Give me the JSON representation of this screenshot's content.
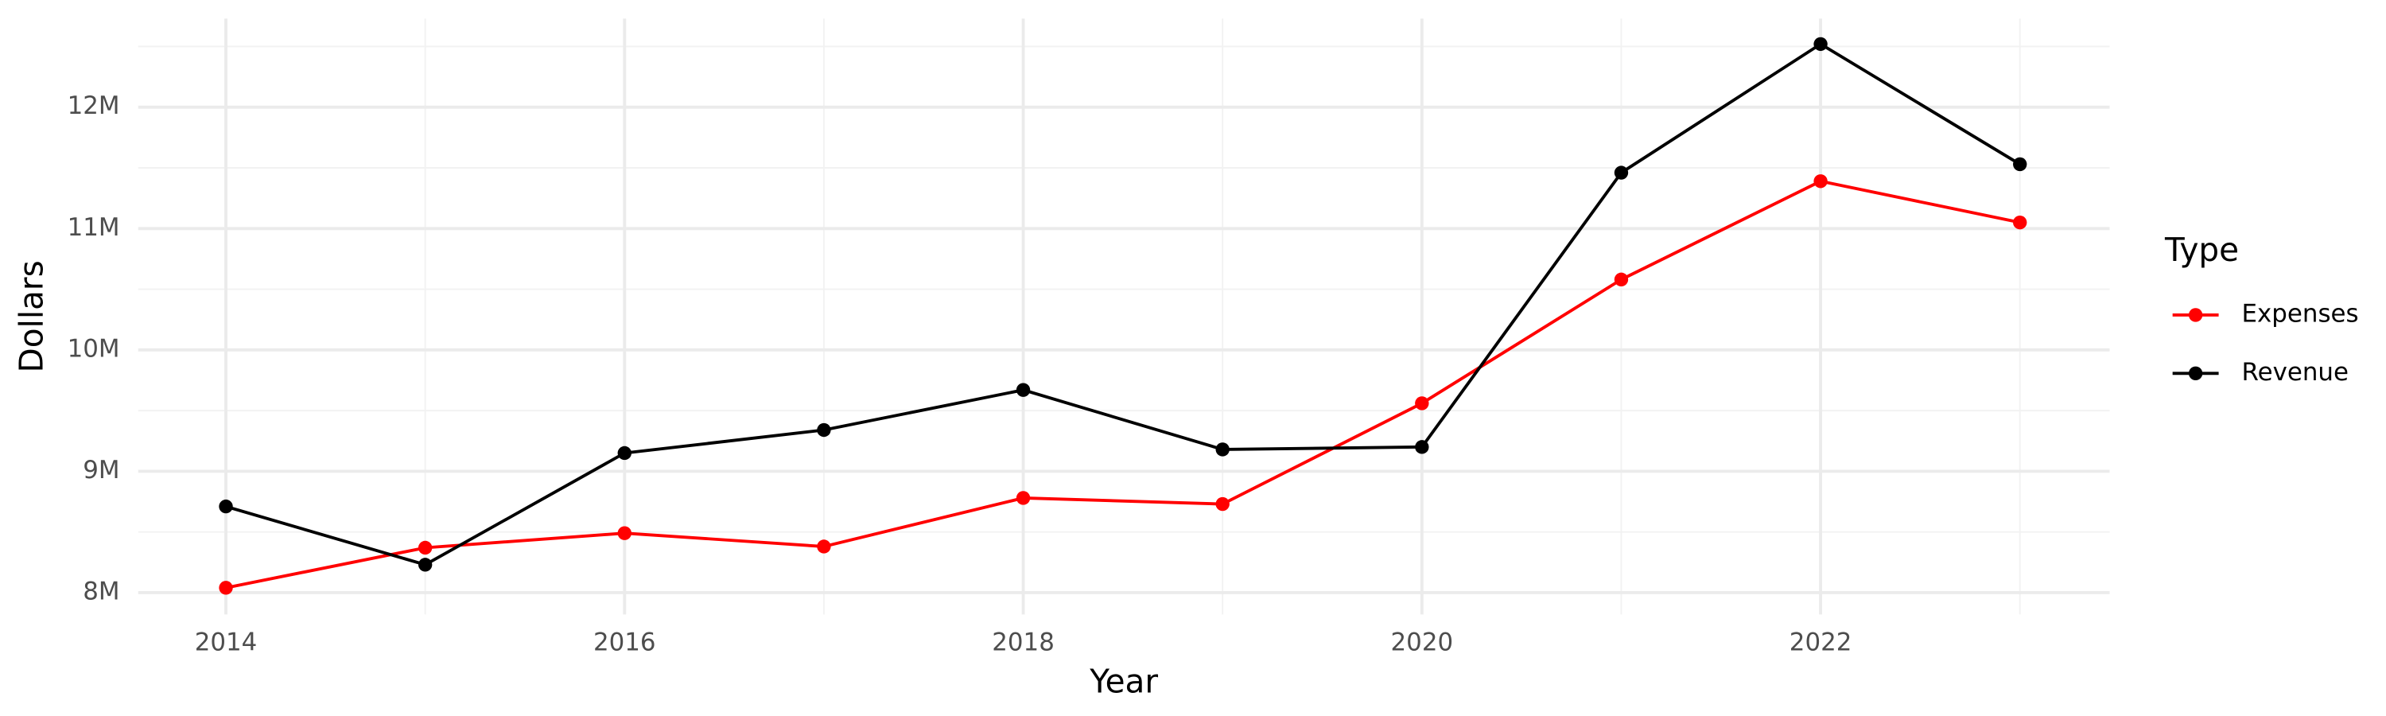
{
  "chart_data": {
    "type": "line",
    "x_label": "Year",
    "y_label": "Dollars",
    "legend_title": "Type",
    "legend_position": "right",
    "x": [
      2014,
      2015,
      2016,
      2017,
      2018,
      2019,
      2020,
      2021,
      2022,
      2023
    ],
    "series": [
      {
        "name": "Expenses",
        "color": "#ff0000",
        "values": [
          8040000,
          8370000,
          8490000,
          8380000,
          8780000,
          8730000,
          9560000,
          10580000,
          11390000,
          11050000
        ]
      },
      {
        "name": "Revenue",
        "color": "#000000",
        "values": [
          8710000,
          8230000,
          9150000,
          9340000,
          9670000,
          9180000,
          9200000,
          11460000,
          12520000,
          11530000
        ]
      }
    ],
    "xlim": [
      2013.56,
      2023.45
    ],
    "xticks": [
      2014,
      2016,
      2018,
      2020,
      2022
    ],
    "minor_xticks": [
      2015,
      2017,
      2019,
      2021,
      2023
    ],
    "ylim": [
      7820000,
      12730000
    ],
    "yticks": [
      {
        "value": 8000000,
        "label": "8M"
      },
      {
        "value": 9000000,
        "label": "9M"
      },
      {
        "value": 10000000,
        "label": "10M"
      },
      {
        "value": 11000000,
        "label": "11M"
      },
      {
        "value": 12000000,
        "label": "12M"
      }
    ],
    "minor_yticks": [
      8500000,
      9500000,
      10500000,
      11500000,
      12500000
    ],
    "grid": true
  }
}
